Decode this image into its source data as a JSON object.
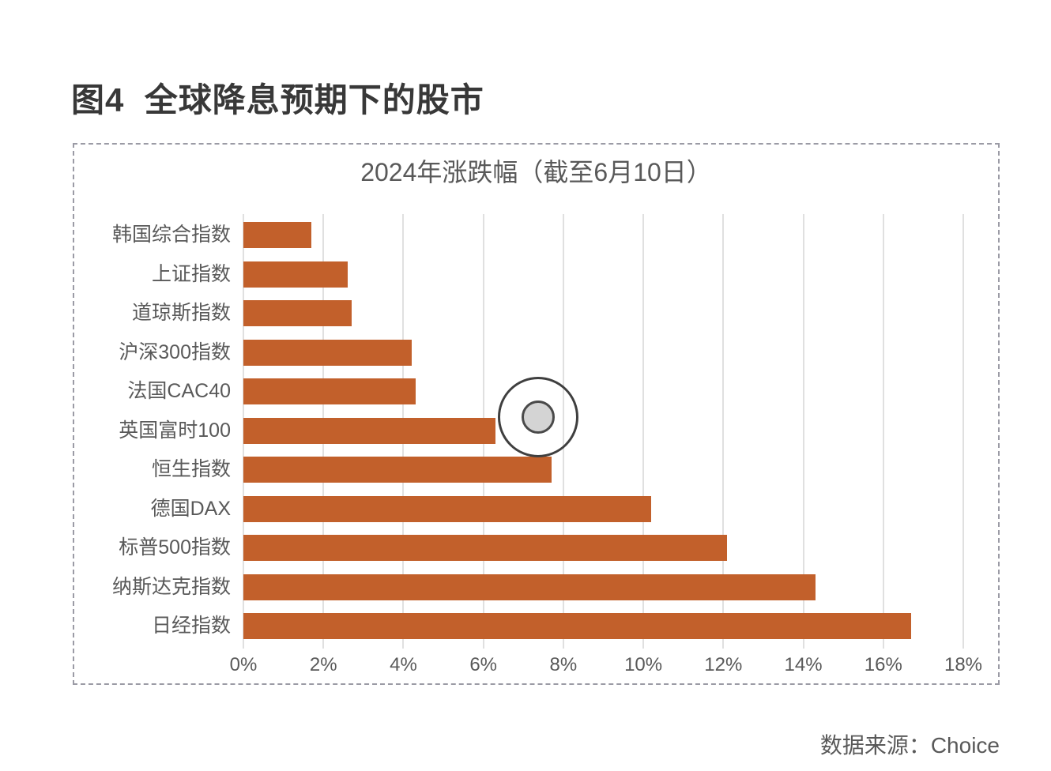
{
  "page": {
    "title": "图4  全球降息预期下的股市",
    "source": "数据来源：Choice"
  },
  "chart_data": {
    "type": "bar",
    "orientation": "horizontal",
    "title": "2024年涨跌幅（截至6月10日）",
    "categories": [
      "韩国综合指数",
      "上证指数",
      "道琼斯指数",
      "沪深300指数",
      "法国CAC40",
      "英国富时100",
      "恒生指数",
      "德国DAX",
      "标普500指数",
      "纳斯达克指数",
      "日经指数"
    ],
    "values": [
      1.7,
      2.6,
      2.7,
      4.2,
      4.3,
      6.3,
      7.7,
      10.2,
      12.1,
      14.3,
      16.7
    ],
    "unit": "%",
    "xlabel": "",
    "ylabel": "",
    "xlim": [
      0,
      18
    ],
    "x_tick_step": 2,
    "x_ticks": [
      "0%",
      "2%",
      "4%",
      "6%",
      "8%",
      "10%",
      "12%",
      "14%",
      "16%",
      "18%"
    ],
    "grid": "vertical",
    "legend": "none",
    "bar_color": "#c2602b",
    "gridline_color": "#e0e0e0",
    "label_color": "#595959"
  },
  "annotations": {
    "click_indicator": {
      "type": "click-indicator",
      "near_category": "英国富时100",
      "at_value_percent": 7.4
    }
  }
}
